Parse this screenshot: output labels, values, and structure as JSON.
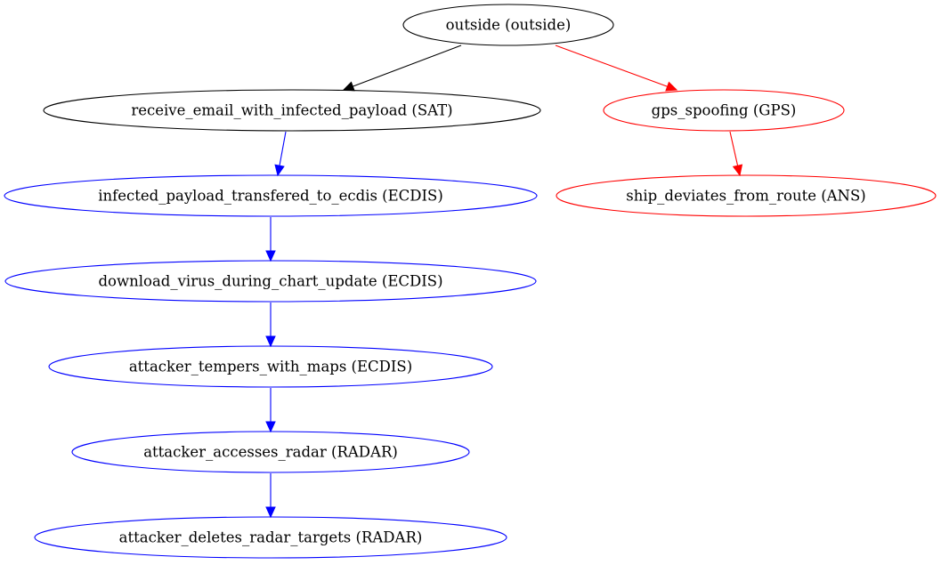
{
  "diagram": {
    "nodes": [
      {
        "id": "n0",
        "label": "outside (outside)",
        "color": "#000000"
      },
      {
        "id": "n1",
        "label": "receive_email_with_infected_payload (SAT)",
        "color": "#000000"
      },
      {
        "id": "n2",
        "label": "gps_spoofing (GPS)",
        "color": "#ff0000"
      },
      {
        "id": "n3",
        "label": "infected_payload_transfered_to_ecdis (ECDIS)",
        "color": "#0000ff"
      },
      {
        "id": "n4",
        "label": "ship_deviates_from_route (ANS)",
        "color": "#ff0000"
      },
      {
        "id": "n5",
        "label": "download_virus_during_chart_update (ECDIS)",
        "color": "#0000ff"
      },
      {
        "id": "n6",
        "label": "attacker_tempers_with_maps (ECDIS)",
        "color": "#0000ff"
      },
      {
        "id": "n7",
        "label": "attacker_accesses_radar (RADAR)",
        "color": "#0000ff"
      },
      {
        "id": "n8",
        "label": "attacker_deletes_radar_targets (RADAR)",
        "color": "#0000ff"
      }
    ],
    "edges": [
      {
        "from": "n0",
        "to": "n1",
        "color": "#000000"
      },
      {
        "from": "n0",
        "to": "n2",
        "color": "#ff0000"
      },
      {
        "from": "n1",
        "to": "n3",
        "color": "#0000ff"
      },
      {
        "from": "n2",
        "to": "n4",
        "color": "#ff0000"
      },
      {
        "from": "n3",
        "to": "n5",
        "color": "#0000ff"
      },
      {
        "from": "n5",
        "to": "n6",
        "color": "#0000ff"
      },
      {
        "from": "n6",
        "to": "n7",
        "color": "#0000ff"
      },
      {
        "from": "n7",
        "to": "n8",
        "color": "#0000ff"
      }
    ]
  }
}
